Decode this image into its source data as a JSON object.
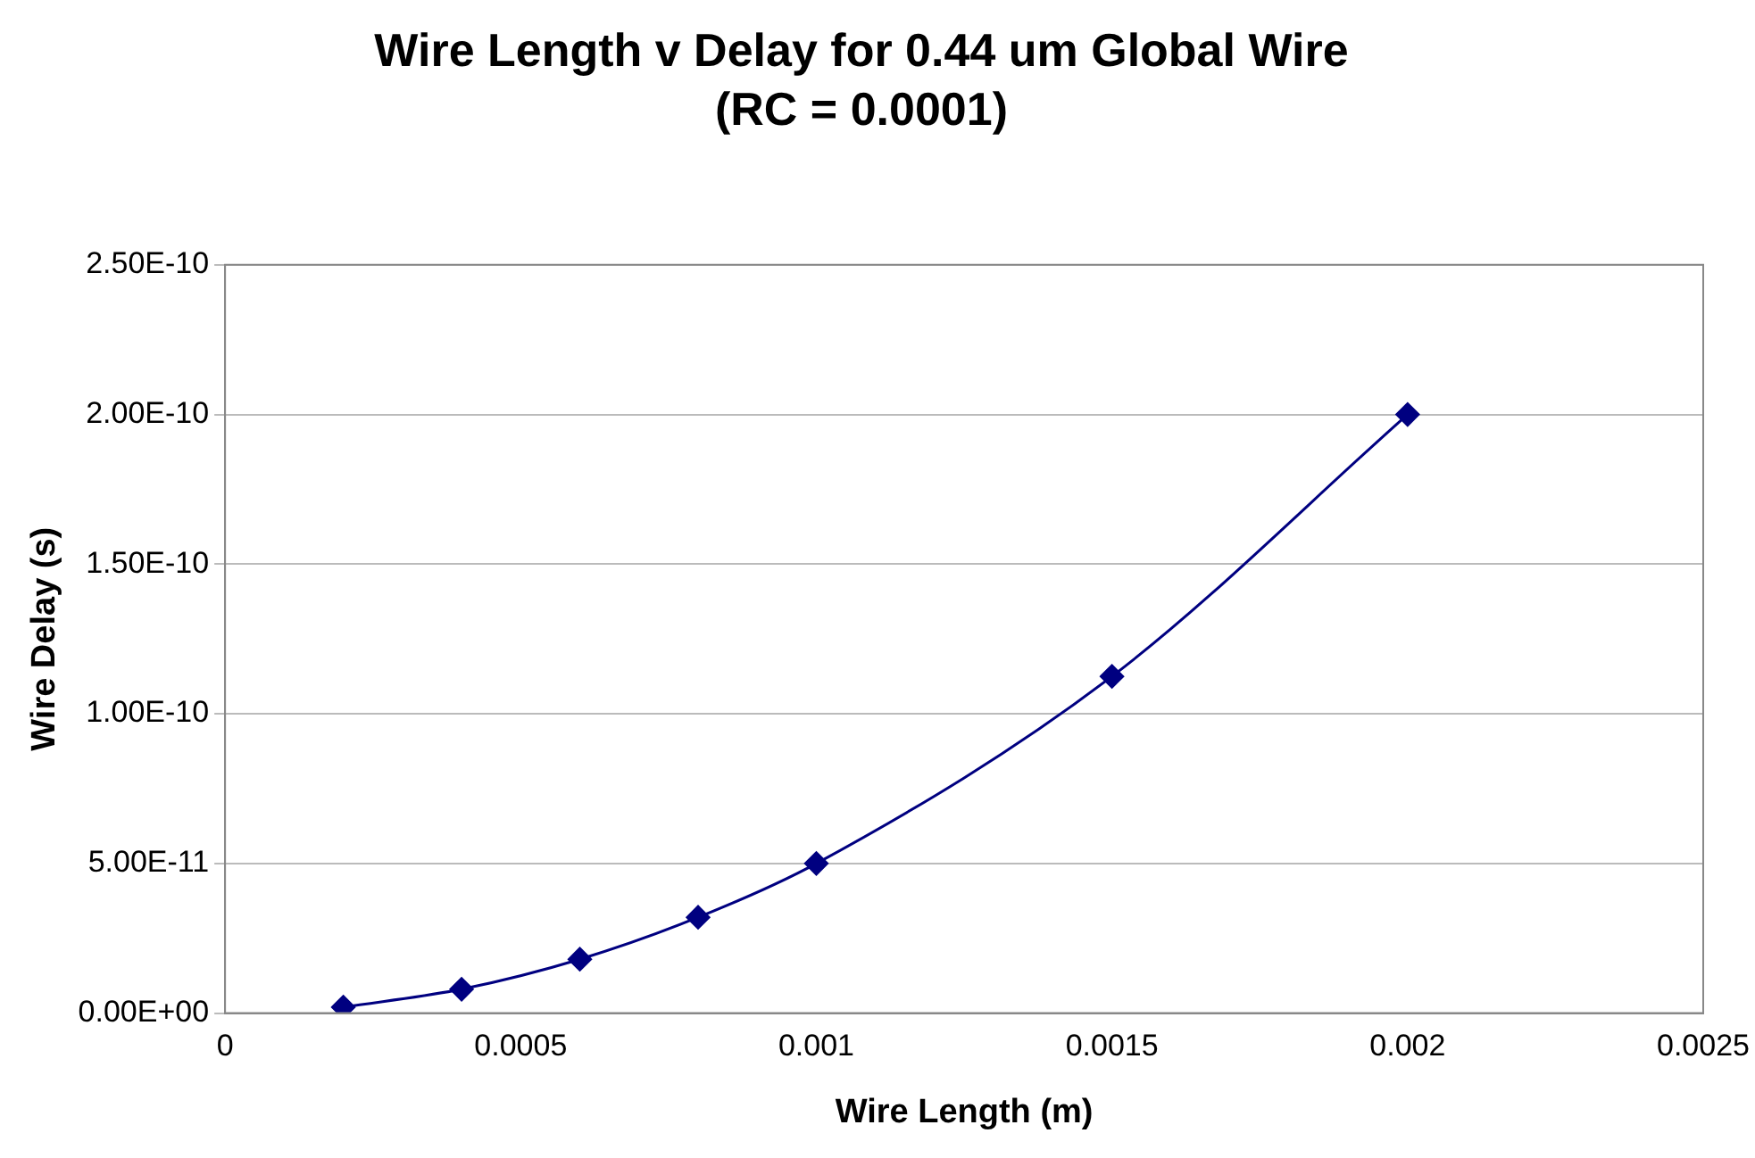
{
  "chart_data": {
    "type": "line",
    "title": "Wire Length v Delay for 0.44 um Global Wire",
    "subtitle": "(RC = 0.0001)",
    "xlabel": "Wire Length (m)",
    "ylabel": "Wire Delay (s)",
    "x": [
      0.0002,
      0.0004,
      0.0006,
      0.0008,
      0.001,
      0.0015,
      0.002
    ],
    "series": [
      {
        "color": "#000080",
        "values": [
          2e-12,
          8e-12,
          1.8e-11,
          3.2e-11,
          5e-11,
          1.125e-10,
          2e-10
        ]
      }
    ],
    "xlim": [
      0,
      0.0025
    ],
    "xticks": [
      0,
      0.0005,
      0.001,
      0.0015,
      0.002,
      0.0025
    ],
    "ylim": [
      0,
      2.5e-10
    ],
    "yticks": [
      {
        "value": 0,
        "label": "0.00E+00"
      },
      {
        "value": 5e-11,
        "label": "5.00E-11"
      },
      {
        "value": 1e-10,
        "label": "1.00E-10"
      },
      {
        "value": 1.5e-10,
        "label": "1.50E-10"
      },
      {
        "value": 2e-10,
        "label": "2.00E-10"
      },
      {
        "value": 2.5e-10,
        "label": "2.50E-10"
      }
    ],
    "grid": "y",
    "legend": false,
    "marker": "diamond",
    "line_style": "solid"
  }
}
